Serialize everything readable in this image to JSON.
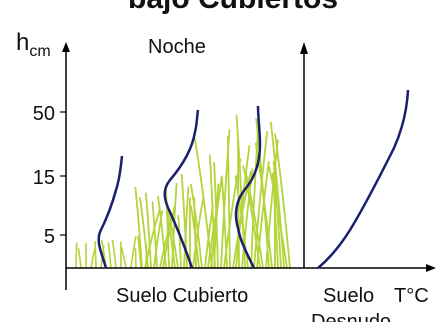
{
  "diagram": {
    "top_banner": "bajo Cubiertos",
    "y_axis_label": {
      "main": "h",
      "subscript": "cm"
    },
    "y_ticks": [
      "50",
      "15",
      "5"
    ],
    "panel_title": "Noche",
    "x_label_covered": "Suelo Cubierto",
    "x_label_bare_line1": "Suelo",
    "x_label_bare_line2": "Desnudo",
    "x_axis_unit": "T°C",
    "colors": {
      "profile_curve": "#1a1f6e",
      "grass": "#b5d33a",
      "axis": "#000000"
    }
  }
}
